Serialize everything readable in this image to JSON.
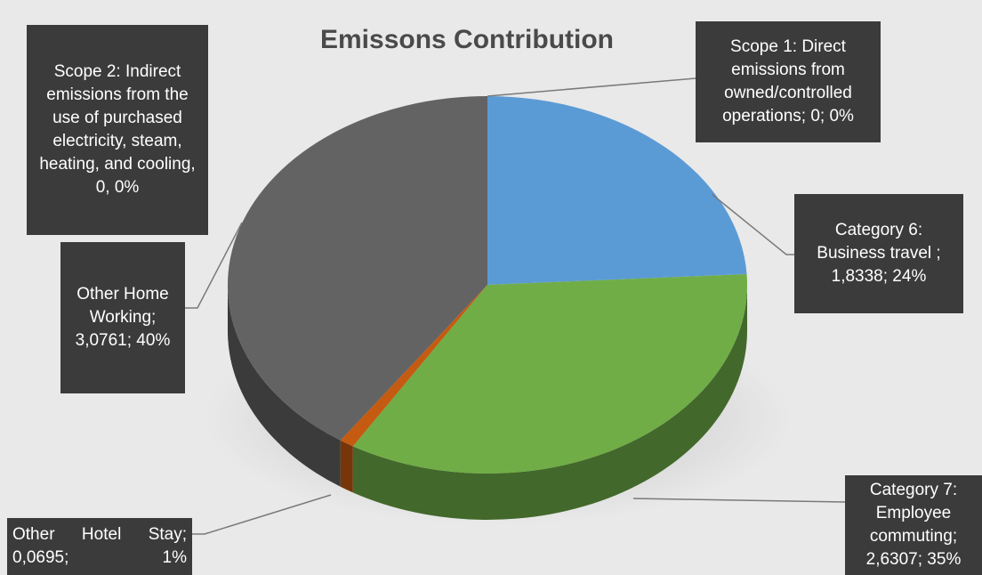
{
  "chart_data": {
    "type": "pie",
    "style": "3d",
    "title": "Emissons Contribution",
    "slices": [
      {
        "label": "Scope 1: Direct emissions from owned/controlled operations; 0; 0%",
        "value": 0,
        "percent": 0,
        "color": "#d9d9d9"
      },
      {
        "label": "Category 6: Business travel ; 1,8338; 24%",
        "value": 1.8338,
        "percent": 24,
        "color": "#5b9bd5"
      },
      {
        "label": "Category 7: Employee commuting; 2,6307; 35%",
        "value": 2.6307,
        "percent": 35,
        "color": "#70ad47"
      },
      {
        "label": "Other Hotel Stay; 0,0695; 1%",
        "value": 0.0695,
        "percent": 1,
        "color": "#c55a11"
      },
      {
        "label": "Other Home Working; 3,0761; 40%",
        "value": 3.0761,
        "percent": 40,
        "color": "#636363"
      },
      {
        "label": "Scope 2: Indirect emissions from the use of purchased electricity, steam, heating, and cooling, 0, 0%",
        "value": 0,
        "percent": 0,
        "color": "#d9d9d9"
      }
    ]
  }
}
